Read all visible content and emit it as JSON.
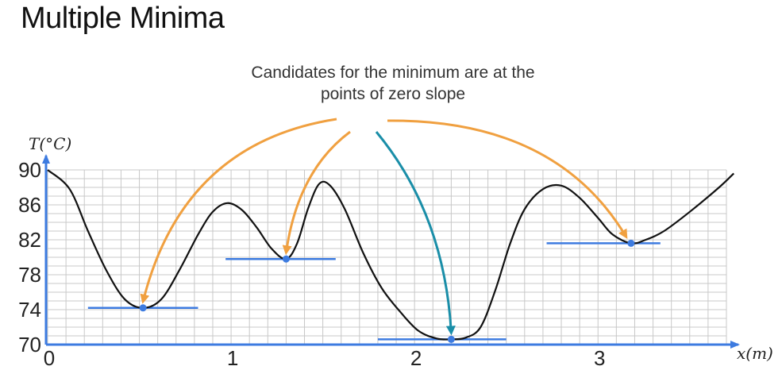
{
  "title": "Multiple Minima",
  "annotation_lines": [
    "Candidates for the minimum are at the",
    "points of zero slope"
  ],
  "colors": {
    "curve": "#111111",
    "grid": "#c8c8c8",
    "axis": "#3d7be0",
    "tangent": "#3d7be0",
    "point": "#3d7be0",
    "arrow_orange": "#f0a040",
    "arrow_teal": "#1a8ea8"
  },
  "chart_data": {
    "type": "line",
    "title": "",
    "xlabel": "x(m)",
    "ylabel": "T(°C)",
    "xlim": [
      0,
      3.7
    ],
    "ylim": [
      70,
      90
    ],
    "x_ticks": [
      "0",
      "1",
      "2",
      "3"
    ],
    "y_ticks": [
      "90",
      "86",
      "82",
      "78",
      "74",
      "70"
    ],
    "grid": true,
    "series": [
      {
        "points": [
          [
            0.0,
            90.0
          ],
          [
            0.12,
            87.8
          ],
          [
            0.22,
            83.0
          ],
          [
            0.32,
            78.5
          ],
          [
            0.42,
            75.2
          ],
          [
            0.52,
            74.2
          ],
          [
            0.62,
            75.2
          ],
          [
            0.72,
            78.6
          ],
          [
            0.82,
            82.6
          ],
          [
            0.9,
            85.2
          ],
          [
            0.98,
            86.2
          ],
          [
            1.06,
            85.4
          ],
          [
            1.14,
            83.4
          ],
          [
            1.22,
            81.0
          ],
          [
            1.3,
            79.8
          ],
          [
            1.36,
            81.6
          ],
          [
            1.42,
            85.6
          ],
          [
            1.48,
            88.4
          ],
          [
            1.54,
            88.2
          ],
          [
            1.62,
            85.5
          ],
          [
            1.72,
            80.5
          ],
          [
            1.82,
            76.5
          ],
          [
            1.92,
            73.8
          ],
          [
            2.02,
            71.6
          ],
          [
            2.12,
            70.7
          ],
          [
            2.2,
            70.6
          ],
          [
            2.28,
            70.8
          ],
          [
            2.36,
            72.0
          ],
          [
            2.44,
            76.2
          ],
          [
            2.52,
            81.5
          ],
          [
            2.6,
            85.5
          ],
          [
            2.7,
            87.8
          ],
          [
            2.8,
            88.2
          ],
          [
            2.9,
            86.8
          ],
          [
            3.0,
            84.5
          ],
          [
            3.08,
            82.6
          ],
          [
            3.18,
            81.6
          ],
          [
            3.26,
            82.0
          ],
          [
            3.36,
            83.0
          ],
          [
            3.5,
            85.2
          ],
          [
            3.66,
            88.0
          ],
          [
            3.74,
            89.6
          ]
        ]
      }
    ],
    "minima": [
      {
        "x": 0.52,
        "y": 74.2,
        "tangent_x": [
          0.22,
          0.82
        ]
      },
      {
        "x": 1.3,
        "y": 79.8,
        "tangent_x": [
          0.97,
          1.57
        ]
      },
      {
        "x": 2.2,
        "y": 70.6,
        "tangent_x": [
          1.8,
          2.5
        ]
      },
      {
        "x": 3.18,
        "y": 81.6,
        "tangent_x": [
          2.72,
          3.34
        ]
      }
    ]
  }
}
